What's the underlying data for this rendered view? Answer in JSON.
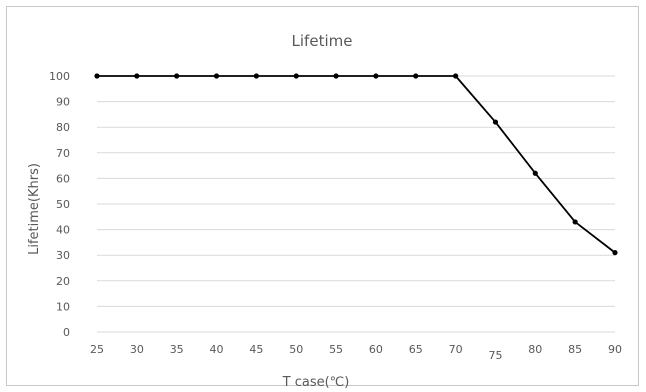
{
  "chart_data": {
    "type": "line",
    "title": "Lifetime",
    "xlabel": "T case(℃)",
    "ylabel": "Lifetime(Khrs)",
    "x": [
      "25",
      "30",
      "35",
      "40",
      "45",
      "50",
      "55",
      "60",
      "65",
      "70",
      "75",
      "80",
      "85",
      "90"
    ],
    "y_ticks": [
      "0",
      "10",
      "20",
      "30",
      "40",
      "50",
      "60",
      "70",
      "80",
      "90",
      "100"
    ],
    "series": [
      {
        "values": [
          100,
          100,
          100,
          100,
          100,
          100,
          100,
          100,
          100,
          100,
          82,
          62,
          43,
          31
        ]
      }
    ],
    "ylim": [
      0,
      100
    ],
    "grid": true,
    "legend": "none",
    "line_color": "#000000",
    "grid_color": "#d9d9d9"
  }
}
